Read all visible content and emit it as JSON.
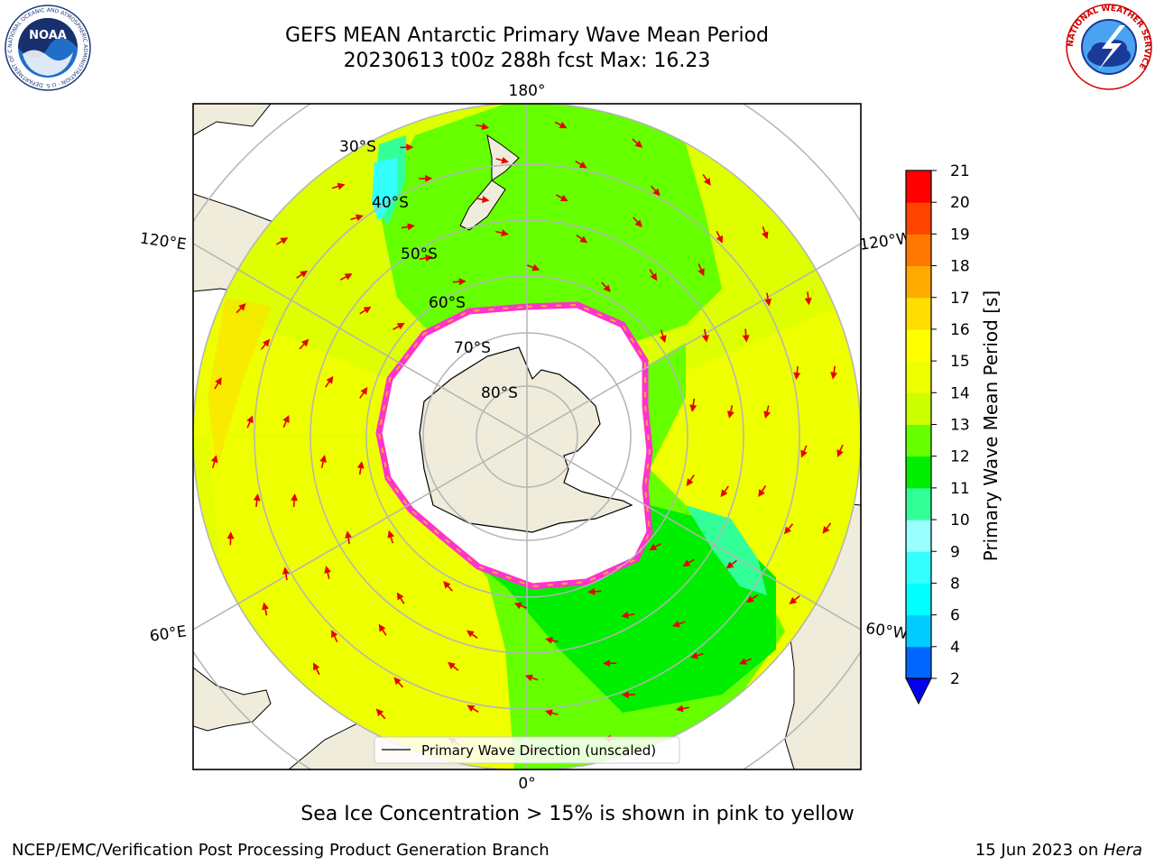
{
  "header": {
    "title_line1": "GEFS MEAN Antarctic Primary Wave Mean Period",
    "title_line2": "20230613 t00z 288h fcst   Max: 16.23"
  },
  "logos": {
    "noaa_text": "NOAA",
    "noaa_ring_text": "NATIONAL OCEANIC AND ATMOSPHERIC ADMINISTRATION · U.S. DEPARTMENT OF COMMERCE",
    "nws_ring_text": "NATIONAL WEATHER SERVICE"
  },
  "map": {
    "projection": "south polar stereographic",
    "longitude_labels": {
      "top": "180°",
      "bottom": "0°",
      "upper_left": "120°E",
      "upper_right": "120°W",
      "lower_left": "60°E",
      "lower_right": "60°W"
    },
    "latitude_labels": [
      "30°S",
      "40°S",
      "50°S",
      "60°S",
      "70°S",
      "80°S"
    ],
    "legend_label": "Primary Wave Direction (unscaled)",
    "colors": {
      "land": "#efecdc",
      "sea_ice": "#ffffff",
      "ice_edge": "#ff33cc",
      "gridline": "#b4b4b4",
      "arrow": "#e60000"
    }
  },
  "colorbar": {
    "label": "Primary Wave Mean Period [s]",
    "ticks": [
      "2",
      "4",
      "6",
      "8",
      "9",
      "10",
      "11",
      "12",
      "13",
      "14",
      "15",
      "16",
      "17",
      "18",
      "19",
      "20",
      "21"
    ],
    "colors": [
      "#0066ff",
      "#00ccff",
      "#00ffff",
      "#33ffff",
      "#99ffff",
      "#33ff99",
      "#00ee00",
      "#66ff00",
      "#ccff00",
      "#eeff00",
      "#ffff00",
      "#ffdd00",
      "#ffaa00",
      "#ff7700",
      "#ff4400",
      "#ff0000"
    ],
    "under_color": "#0000ee"
  },
  "caption": "Sea Ice Concentration > 15% is shown in pink to yellow",
  "footer": {
    "left": "NCEP/EMC/Verification Post Processing Product Generation Branch",
    "right_prefix": "15 Jun 2023 on ",
    "right_host": "Hera"
  }
}
